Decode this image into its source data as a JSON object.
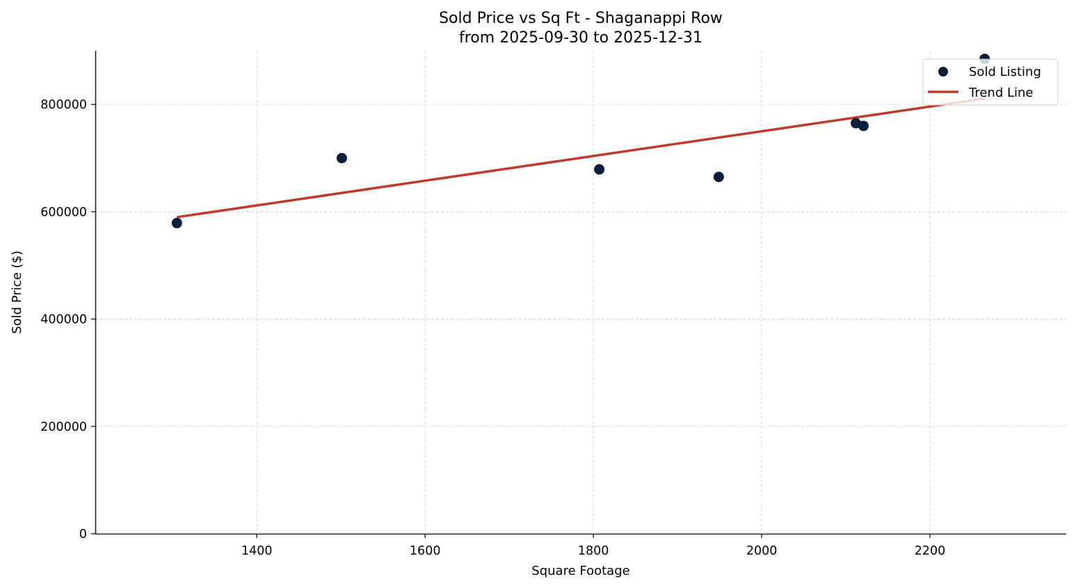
{
  "chart_data": {
    "type": "scatter",
    "title": "Sold Price vs Sq Ft - Shaganappi Row",
    "subtitle": "from 2025-09-30 to 2025-12-31",
    "xlabel": "Square Footage",
    "ylabel": "Sold Price ($)",
    "xlim": [
      1208,
      2362
    ],
    "ylim": [
      0,
      900000
    ],
    "xticks": [
      1400,
      1600,
      1800,
      2000,
      2200
    ],
    "yticks": [
      0,
      200000,
      400000,
      600000,
      800000
    ],
    "grid": true,
    "legend_position": "upper right",
    "series": [
      {
        "name": "Sold Listing",
        "kind": "scatter",
        "color": "#0b1f3a",
        "points": [
          {
            "x": 1305,
            "y": 579000
          },
          {
            "x": 1501,
            "y": 700000
          },
          {
            "x": 1807,
            "y": 679000
          },
          {
            "x": 1949,
            "y": 665000
          },
          {
            "x": 2112,
            "y": 765000
          },
          {
            "x": 2121,
            "y": 760000
          },
          {
            "x": 2265,
            "y": 885000
          }
        ]
      },
      {
        "name": "Trend Line",
        "kind": "line",
        "color": "#c0392b",
        "points": [
          {
            "x": 1305,
            "y": 590000
          },
          {
            "x": 2265,
            "y": 811000
          }
        ]
      }
    ]
  }
}
